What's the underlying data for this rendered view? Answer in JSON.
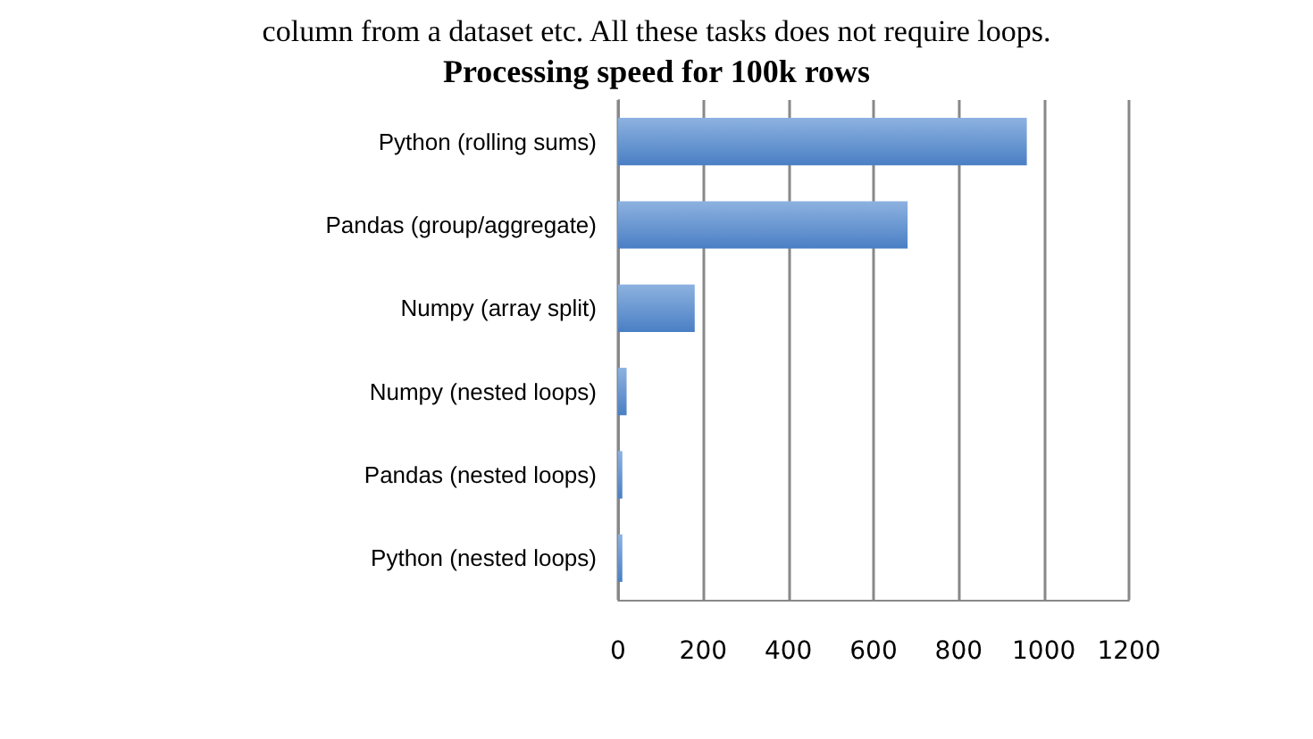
{
  "chart_data": {
    "type": "bar",
    "orientation": "horizontal",
    "title": "Processing speed for 100k rows",
    "annotations": [
      "column from a dataset etc. All these tasks does not require loops."
    ],
    "categories": [
      "Python (rolling sums)",
      "Pandas (group/aggregate)",
      "Numpy (array split)",
      "Numpy (nested loops)",
      "Pandas (nested loops)",
      "Python (nested loops)"
    ],
    "values": [
      960,
      680,
      180,
      20,
      10,
      10
    ],
    "color": "#4a7fc4",
    "xlim": [
      0,
      1200
    ],
    "xticks": [
      0,
      200,
      400,
      600,
      800,
      1000,
      1200
    ],
    "grid": "x"
  }
}
